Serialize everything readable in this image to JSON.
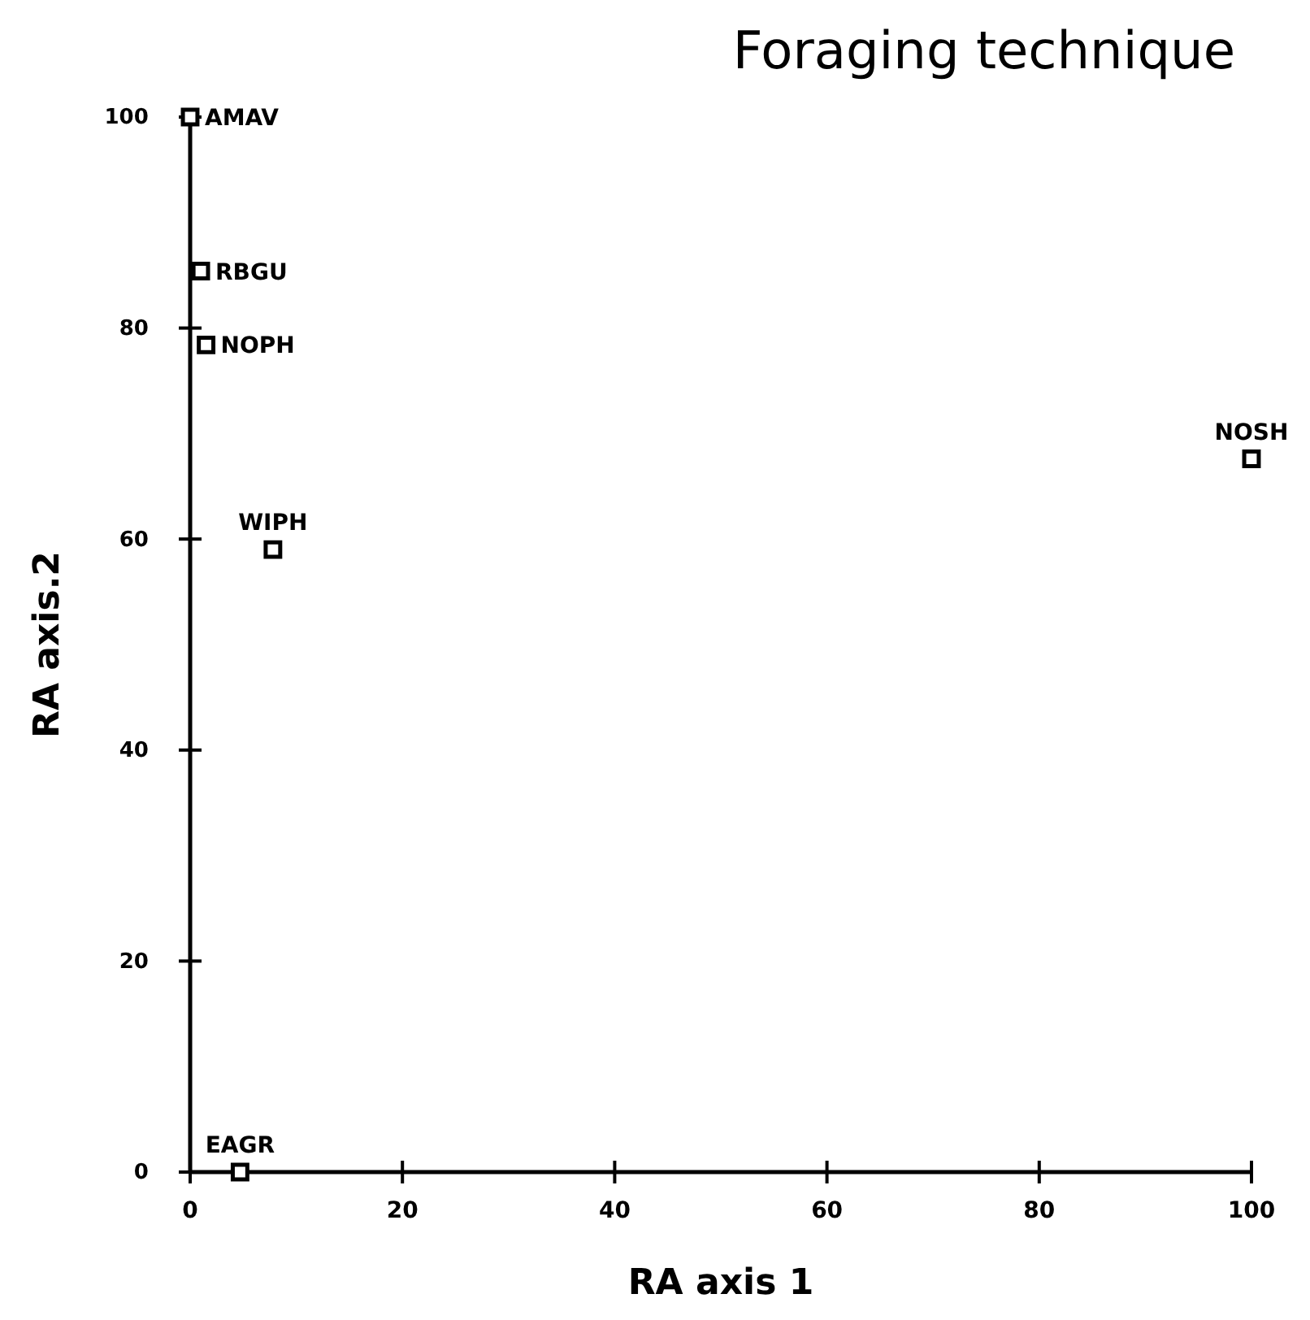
{
  "chart_data": {
    "type": "scatter",
    "title": "Foraging technique",
    "xlabel": "RA axis 1",
    "ylabel": "RA axis.2",
    "x": [
      0,
      1,
      1.5,
      7.8,
      100,
      4.7
    ],
    "values": [
      100,
      85.4,
      78.4,
      59,
      67.6,
      0
    ],
    "color": "#000000",
    "marker": "square",
    "grid": false,
    "xlim": [
      0,
      100
    ],
    "xticks": [
      0,
      20,
      40,
      60,
      80,
      100
    ],
    "ylim": [
      0,
      100
    ],
    "yticks": [
      0,
      20,
      40,
      60,
      80,
      100
    ],
    "annotations": [
      {
        "text": "AMAV",
        "x": 0,
        "y": 100
      },
      {
        "text": "RBGU",
        "x": 1,
        "y": 85.4
      },
      {
        "text": "NOPH",
        "x": 1.5,
        "y": 78.4
      },
      {
        "text": "WIPH",
        "x": 7.8,
        "y": 59
      },
      {
        "text": "NOSH",
        "x": 100,
        "y": 67.6
      },
      {
        "text": "EAGR",
        "x": 4.7,
        "y": 0
      }
    ]
  }
}
